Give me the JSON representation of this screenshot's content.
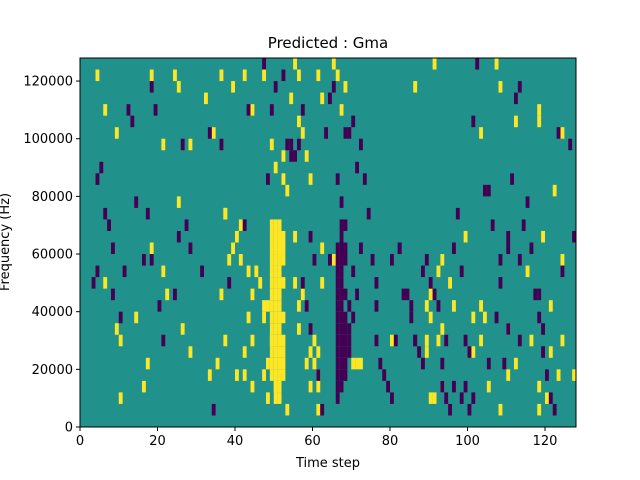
{
  "chart_data": {
    "type": "heatmap",
    "title": "Predicted : Gma",
    "xlabel": "Time step",
    "ylabel": "Frequency (Hz)",
    "xlim": [
      0,
      128
    ],
    "ylim": [
      0,
      128000
    ],
    "x_ticks": [
      0,
      20,
      40,
      60,
      80,
      100,
      120
    ],
    "y_ticks": [
      0,
      20000,
      40000,
      60000,
      80000,
      100000,
      120000
    ],
    "x_tick_labels": [
      "0",
      "20",
      "40",
      "60",
      "80",
      "100",
      "120"
    ],
    "y_tick_labels": [
      "0",
      "20000",
      "40000",
      "60000",
      "80000",
      "100000",
      "120000"
    ],
    "grid": false,
    "colors": {
      "background": "#21918c",
      "high": "#fde725",
      "low": "#440154"
    },
    "cell_height_hz": 4000,
    "high_cells": [
      [
        4,
        120000
      ],
      [
        6,
        108000
      ],
      [
        9,
        100000
      ],
      [
        18,
        120000
      ],
      [
        21,
        96000
      ],
      [
        24,
        120000
      ],
      [
        25,
        116000
      ],
      [
        28,
        96000
      ],
      [
        32,
        112000
      ],
      [
        34,
        100000
      ],
      [
        36,
        120000
      ],
      [
        39,
        116000
      ],
      [
        42,
        120000
      ],
      [
        44,
        108000
      ],
      [
        47,
        120000
      ],
      [
        49,
        96000
      ],
      [
        50,
        88000
      ],
      [
        52,
        92000
      ],
      [
        52,
        84000
      ],
      [
        53,
        80000
      ],
      [
        54,
        112000
      ],
      [
        55,
        124000
      ],
      [
        56,
        120000
      ],
      [
        56,
        104000
      ],
      [
        57,
        100000
      ],
      [
        58,
        92000
      ],
      [
        59,
        84000
      ],
      [
        61,
        120000
      ],
      [
        62,
        112000
      ],
      [
        65,
        124000
      ],
      [
        66,
        120000
      ],
      [
        67,
        108000
      ],
      [
        68,
        116000
      ],
      [
        86,
        116000
      ],
      [
        91,
        124000
      ],
      [
        103,
        100000
      ],
      [
        107,
        124000
      ],
      [
        108,
        116000
      ],
      [
        112,
        104000
      ],
      [
        118,
        108000
      ],
      [
        118,
        104000
      ],
      [
        122,
        80000
      ],
      [
        124,
        100000
      ],
      [
        37,
        72000
      ],
      [
        41,
        68000
      ],
      [
        40,
        64000
      ],
      [
        41,
        56000
      ],
      [
        43,
        52000
      ],
      [
        46,
        48000
      ],
      [
        44,
        44000
      ],
      [
        47,
        40000
      ],
      [
        43,
        36000
      ],
      [
        44,
        28000
      ],
      [
        42,
        24000
      ],
      [
        42,
        16000
      ],
      [
        44,
        12000
      ],
      [
        48,
        8000
      ],
      [
        47,
        16000
      ],
      [
        48,
        20000
      ],
      [
        47,
        36000
      ],
      [
        48,
        40000
      ],
      [
        49,
        28000
      ],
      [
        50,
        32000
      ],
      [
        49,
        68000
      ],
      [
        49,
        64000
      ],
      [
        49,
        60000
      ],
      [
        49,
        56000
      ],
      [
        49,
        52000
      ],
      [
        49,
        48000
      ],
      [
        49,
        44000
      ],
      [
        49,
        40000
      ],
      [
        49,
        36000
      ],
      [
        49,
        32000
      ],
      [
        49,
        28000
      ],
      [
        49,
        24000
      ],
      [
        49,
        20000
      ],
      [
        49,
        16000
      ],
      [
        50,
        12000
      ],
      [
        50,
        8000
      ],
      [
        50,
        68000
      ],
      [
        50,
        64000
      ],
      [
        50,
        60000
      ],
      [
        50,
        56000
      ],
      [
        50,
        52000
      ],
      [
        50,
        48000
      ],
      [
        50,
        44000
      ],
      [
        50,
        40000
      ],
      [
        50,
        36000
      ],
      [
        50,
        28000
      ],
      [
        50,
        24000
      ],
      [
        50,
        20000
      ],
      [
        50,
        16000
      ],
      [
        50,
        12000
      ],
      [
        51,
        68000
      ],
      [
        51,
        64000
      ],
      [
        51,
        60000
      ],
      [
        51,
        56000
      ],
      [
        51,
        52000
      ],
      [
        51,
        48000
      ],
      [
        51,
        44000
      ],
      [
        51,
        40000
      ],
      [
        51,
        36000
      ],
      [
        51,
        32000
      ],
      [
        51,
        28000
      ],
      [
        51,
        24000
      ],
      [
        51,
        20000
      ],
      [
        51,
        16000
      ],
      [
        51,
        12000
      ],
      [
        51,
        8000
      ],
      [
        52,
        64000
      ],
      [
        52,
        60000
      ],
      [
        52,
        56000
      ],
      [
        52,
        48000
      ],
      [
        52,
        36000
      ],
      [
        52,
        28000
      ],
      [
        52,
        24000
      ],
      [
        52,
        20000
      ],
      [
        52,
        16000
      ],
      [
        55,
        48000
      ],
      [
        56,
        40000
      ],
      [
        56,
        32000
      ],
      [
        58,
        20000
      ],
      [
        59,
        24000
      ],
      [
        59,
        12000
      ],
      [
        60,
        28000
      ],
      [
        60,
        20000
      ],
      [
        61,
        16000
      ],
      [
        61,
        12000
      ],
      [
        61,
        4000
      ],
      [
        61,
        24000
      ],
      [
        62,
        60000
      ],
      [
        65,
        56000
      ],
      [
        62,
        48000
      ],
      [
        70,
        20000
      ],
      [
        71,
        20000
      ],
      [
        72,
        20000
      ],
      [
        80,
        28000
      ],
      [
        89,
        24000
      ],
      [
        89,
        28000
      ],
      [
        89,
        40000
      ],
      [
        90,
        44000
      ],
      [
        90,
        36000
      ],
      [
        90,
        8000
      ],
      [
        91,
        8000
      ],
      [
        92,
        28000
      ],
      [
        93,
        32000
      ],
      [
        93,
        12000
      ],
      [
        92,
        52000
      ],
      [
        93,
        56000
      ],
      [
        95,
        48000
      ],
      [
        96,
        40000
      ],
      [
        99,
        64000
      ],
      [
        101,
        36000
      ],
      [
        101,
        24000
      ],
      [
        103,
        28000
      ],
      [
        104,
        36000
      ],
      [
        103,
        40000
      ],
      [
        105,
        12000
      ],
      [
        108,
        4000
      ],
      [
        110,
        32000
      ],
      [
        112,
        20000
      ],
      [
        115,
        52000
      ],
      [
        118,
        12000
      ],
      [
        118,
        4000
      ],
      [
        119,
        64000
      ],
      [
        121,
        24000
      ],
      [
        121,
        40000
      ],
      [
        123,
        16000
      ],
      [
        124,
        28000
      ],
      [
        127,
        16000
      ],
      [
        9,
        32000
      ],
      [
        10,
        8000
      ],
      [
        10,
        28000
      ],
      [
        14,
        36000
      ],
      [
        16,
        12000
      ],
      [
        18,
        60000
      ],
      [
        21,
        52000
      ],
      [
        22,
        44000
      ],
      [
        26,
        32000
      ],
      [
        28,
        24000
      ],
      [
        35,
        20000
      ],
      [
        36,
        44000
      ],
      [
        37,
        28000
      ],
      [
        40,
        16000
      ],
      [
        38,
        56000
      ],
      [
        39,
        60000
      ],
      [
        37,
        72000
      ],
      [
        45,
        52000
      ],
      [
        53,
        4000
      ],
      [
        55,
        64000
      ],
      [
        57,
        44000
      ],
      [
        33,
        16000
      ],
      [
        17,
        20000
      ],
      [
        25,
        76000
      ],
      [
        110,
        16000
      ],
      [
        116,
        28000
      ],
      [
        120,
        8000
      ],
      [
        124,
        56000
      ],
      [
        6,
        48000
      ]
    ],
    "low_cells": [
      [
        3,
        48000
      ],
      [
        4,
        52000
      ],
      [
        4,
        84000
      ],
      [
        5,
        88000
      ],
      [
        6,
        72000
      ],
      [
        7,
        68000
      ],
      [
        8,
        60000
      ],
      [
        8,
        44000
      ],
      [
        10,
        36000
      ],
      [
        11,
        52000
      ],
      [
        12,
        108000
      ],
      [
        13,
        104000
      ],
      [
        14,
        76000
      ],
      [
        16,
        56000
      ],
      [
        17,
        72000
      ],
      [
        18,
        56000
      ],
      [
        18,
        116000
      ],
      [
        19,
        108000
      ],
      [
        20,
        40000
      ],
      [
        21,
        28000
      ],
      [
        24,
        44000
      ],
      [
        25,
        64000
      ],
      [
        26,
        96000
      ],
      [
        27,
        68000
      ],
      [
        28,
        60000
      ],
      [
        31,
        52000
      ],
      [
        33,
        100000
      ],
      [
        34,
        4000
      ],
      [
        36,
        96000
      ],
      [
        38,
        48000
      ],
      [
        42,
        68000
      ],
      [
        43,
        108000
      ],
      [
        47,
        124000
      ],
      [
        48,
        84000
      ],
      [
        49,
        108000
      ],
      [
        50,
        116000
      ],
      [
        52,
        120000
      ],
      [
        53,
        96000
      ],
      [
        54,
        96000
      ],
      [
        54,
        92000
      ],
      [
        55,
        92000
      ],
      [
        56,
        96000
      ],
      [
        57,
        108000
      ],
      [
        57,
        48000
      ],
      [
        58,
        40000
      ],
      [
        59,
        32000
      ],
      [
        59,
        64000
      ],
      [
        60,
        56000
      ],
      [
        61,
        16000
      ],
      [
        62,
        4000
      ],
      [
        63,
        100000
      ],
      [
        64,
        112000
      ],
      [
        64,
        56000
      ],
      [
        65,
        116000
      ],
      [
        66,
        84000
      ],
      [
        67,
        76000
      ],
      [
        67,
        68000
      ],
      [
        67,
        64000
      ],
      [
        68,
        100000
      ],
      [
        68,
        68000
      ],
      [
        69,
        100000
      ],
      [
        70,
        104000
      ],
      [
        71,
        88000
      ],
      [
        72,
        96000
      ],
      [
        73,
        84000
      ],
      [
        74,
        72000
      ],
      [
        75,
        56000
      ],
      [
        76,
        48000
      ],
      [
        76,
        40000
      ],
      [
        76,
        28000
      ],
      [
        77,
        20000
      ],
      [
        78,
        16000
      ],
      [
        79,
        12000
      ],
      [
        80,
        8000
      ],
      [
        82,
        60000
      ],
      [
        83,
        44000
      ],
      [
        85,
        36000
      ],
      [
        86,
        28000
      ],
      [
        87,
        24000
      ],
      [
        88,
        20000
      ],
      [
        89,
        56000
      ],
      [
        90,
        48000
      ],
      [
        91,
        44000
      ],
      [
        92,
        40000
      ],
      [
        93,
        20000
      ],
      [
        94,
        8000
      ],
      [
        95,
        4000
      ],
      [
        96,
        12000
      ],
      [
        96,
        60000
      ],
      [
        97,
        72000
      ],
      [
        98,
        52000
      ],
      [
        99,
        28000
      ],
      [
        100,
        24000
      ],
      [
        101,
        104000
      ],
      [
        102,
        124000
      ],
      [
        104,
        80000
      ],
      [
        105,
        80000
      ],
      [
        106,
        68000
      ],
      [
        107,
        36000
      ],
      [
        108,
        48000
      ],
      [
        109,
        20000
      ],
      [
        110,
        60000
      ],
      [
        111,
        84000
      ],
      [
        112,
        112000
      ],
      [
        113,
        116000
      ],
      [
        114,
        68000
      ],
      [
        115,
        76000
      ],
      [
        116,
        60000
      ],
      [
        117,
        44000
      ],
      [
        118,
        36000
      ],
      [
        119,
        24000
      ],
      [
        120,
        16000
      ],
      [
        121,
        8000
      ],
      [
        122,
        4000
      ],
      [
        123,
        100000
      ],
      [
        124,
        52000
      ],
      [
        126,
        96000
      ],
      [
        127,
        64000
      ],
      [
        66,
        60000
      ],
      [
        66,
        56000
      ],
      [
        66,
        52000
      ],
      [
        66,
        48000
      ],
      [
        66,
        44000
      ],
      [
        66,
        40000
      ],
      [
        66,
        36000
      ],
      [
        66,
        32000
      ],
      [
        66,
        28000
      ],
      [
        66,
        24000
      ],
      [
        66,
        20000
      ],
      [
        66,
        16000
      ],
      [
        66,
        12000
      ],
      [
        66,
        8000
      ],
      [
        67,
        60000
      ],
      [
        67,
        56000
      ],
      [
        67,
        52000
      ],
      [
        67,
        48000
      ],
      [
        67,
        44000
      ],
      [
        67,
        40000
      ],
      [
        67,
        36000
      ],
      [
        67,
        32000
      ],
      [
        67,
        28000
      ],
      [
        67,
        24000
      ],
      [
        67,
        20000
      ],
      [
        67,
        16000
      ],
      [
        67,
        12000
      ],
      [
        68,
        60000
      ],
      [
        68,
        56000
      ],
      [
        68,
        44000
      ],
      [
        68,
        36000
      ],
      [
        68,
        32000
      ],
      [
        68,
        28000
      ],
      [
        68,
        24000
      ],
      [
        68,
        20000
      ],
      [
        68,
        16000
      ],
      [
        69,
        40000
      ],
      [
        69,
        32000
      ],
      [
        69,
        28000
      ],
      [
        69,
        24000
      ],
      [
        70,
        52000
      ],
      [
        70,
        36000
      ],
      [
        71,
        44000
      ],
      [
        72,
        60000
      ],
      [
        80,
        56000
      ],
      [
        82,
        60000
      ],
      [
        81,
        28000
      ],
      [
        84,
        44000
      ],
      [
        85,
        40000
      ],
      [
        86,
        28000
      ],
      [
        88,
        52000
      ],
      [
        93,
        12000
      ],
      [
        94,
        28000
      ],
      [
        98,
        8000
      ],
      [
        99,
        12000
      ],
      [
        100,
        4000
      ],
      [
        101,
        8000
      ],
      [
        105,
        20000
      ],
      [
        108,
        56000
      ],
      [
        110,
        32000
      ],
      [
        113,
        28000
      ],
      [
        110,
        64000
      ],
      [
        113,
        56000
      ],
      [
        118,
        44000
      ],
      [
        119,
        32000
      ]
    ]
  }
}
